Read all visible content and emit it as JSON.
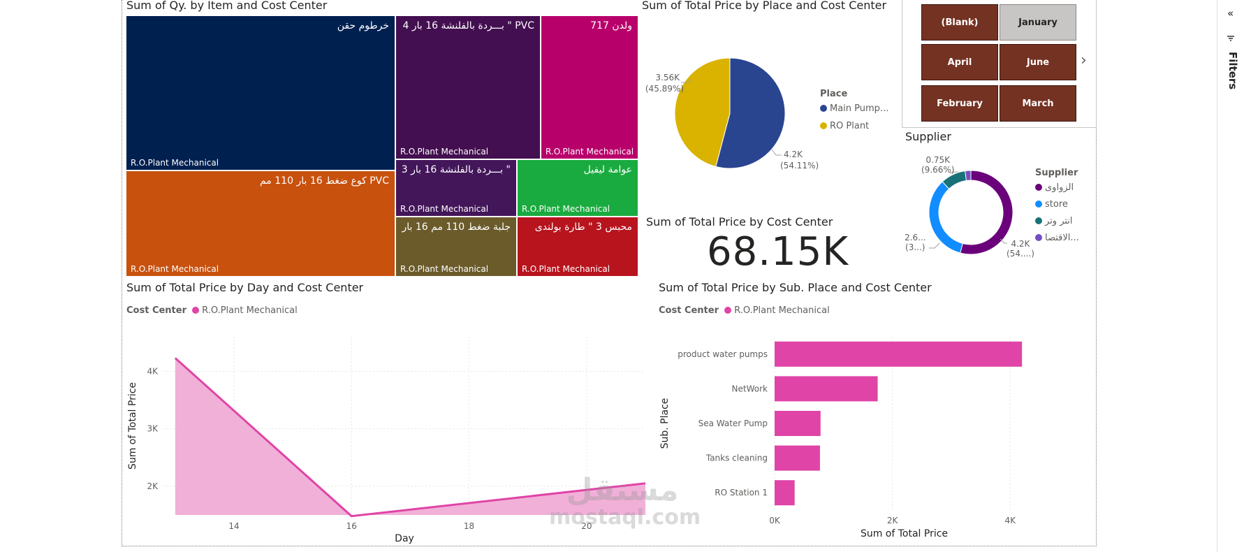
{
  "treemap": {
    "title": "Sum of Qy. by Item and Cost Center",
    "tiles": [
      {
        "name": "خرطوم حقن",
        "cc": "R.O.Plant Mechanical",
        "color": "#002050"
      },
      {
        "name": "PVC \" بـــردة بالفلنشة 16 بار 4",
        "cc": "R.O.Plant Mechanical",
        "color": "#430f50"
      },
      {
        "name": "ولدن 717",
        "cc": "R.O.Plant Mechanical",
        "color": "#b8006b"
      },
      {
        "name": "PVC كوع ضغط 16 بار 110 مم",
        "cc": "R.O.Plant Mechanical",
        "color": "#c8510e"
      },
      {
        "name": "\" بـــردة بالفلنشة 16 بار 3",
        "cc": "R.O.Plant Mechanical",
        "color": "#43165a"
      },
      {
        "name": "عوامة ليفيل",
        "cc": "R.O.Plant Mechanical",
        "color": "#1aab40"
      },
      {
        "name": "جلبة ضغط 110 مم 16 بار",
        "cc": "R.O.Plant Mechanical",
        "color": "#6b5b2b"
      },
      {
        "name": "محبس 3 \" طارة بولندى",
        "cc": "R.O.Plant Mechanical",
        "color": "#b7141e"
      }
    ]
  },
  "pie": {
    "title": "Sum of Total Price by Place and Cost Center",
    "legend_title": "Place",
    "slices": [
      {
        "name": "Main Pump...",
        "value": 4.2,
        "color": "#2a4590",
        "label_value": "4.2K",
        "label_pct": "(54.11%)"
      },
      {
        "name": "RO Plant",
        "value": 3.56,
        "color": "#d9b300",
        "label_value": "3.56K",
        "label_pct": "(45.89%)"
      }
    ]
  },
  "slicer": {
    "buttons": [
      {
        "label": "(Blank)",
        "selected": false
      },
      {
        "label": "January",
        "selected": true
      },
      {
        "label": "April",
        "selected": false
      },
      {
        "label": "June",
        "selected": false
      },
      {
        "label": "February",
        "selected": false
      },
      {
        "label": "March",
        "selected": false
      }
    ],
    "next_arrow": "›"
  },
  "donut": {
    "title": "Supplier",
    "legend_title": "Supplier",
    "slices": [
      {
        "name": "الزواوى",
        "value": 54.1,
        "color": "#6b007b"
      },
      {
        "name": "store",
        "value": 34.0,
        "color": "#118dff"
      },
      {
        "name": "انتر وتر",
        "value": 9.66,
        "color": "#197278"
      },
      {
        "name": "الاقتصا...",
        "value": 2.24,
        "color": "#744ec2"
      }
    ],
    "labels": {
      "top_value": "0.75K",
      "top_pct": "(9.66%)",
      "left_value": "2.6...",
      "left_pct": "(3...)",
      "right_value": "4.2K",
      "right_pct": "(54....)"
    }
  },
  "card": {
    "title": "Sum of Total Price by Cost Center",
    "value": "68.15K"
  },
  "area_chart": {
    "title": "Sum of Total Price by Day and Cost Center",
    "legend_prefix": "Cost Center",
    "legend_item": "R.O.Plant Mechanical",
    "xlabel": "Day",
    "ylabel": "Sum of Total Price",
    "x_ticks": [
      "14",
      "16",
      "18",
      "20"
    ],
    "y_ticks": [
      "4K",
      "3K",
      "2K"
    ]
  },
  "bar_chart": {
    "title": "Sum of Total Price by Sub. Place and Cost Center",
    "legend_prefix": "Cost Center",
    "legend_item": "R.O.Plant Mechanical",
    "xlabel": "Sum of Total Price",
    "ylabel": "Sub. Place",
    "x_ticks": [
      "0K",
      "2K",
      "4K"
    ]
  },
  "chart_data": [
    {
      "type": "area",
      "title": "Sum of Total Price by Day and Cost Center",
      "xlabel": "Day",
      "ylabel": "Sum of Total Price",
      "xlim": [
        12.8,
        21
      ],
      "ylim": [
        1500,
        4600
      ],
      "series": [
        {
          "name": "R.O.Plant Mechanical",
          "color": "#e044a7",
          "x": [
            13,
            16,
            21
          ],
          "y": [
            4230,
            1480,
            2050
          ]
        }
      ]
    },
    {
      "type": "bar",
      "title": "Sum of Total Price by Sub. Place and Cost Center",
      "xlabel": "Sum of Total Price",
      "ylabel": "Sub. Place",
      "xlim": [
        0,
        4400
      ],
      "categories": [
        "product water pumps",
        "NetWork",
        "Sea Water Pump",
        "Tanks cleaning",
        "RO Station 1"
      ],
      "series": [
        {
          "name": "R.O.Plant Mechanical",
          "color": "#e044a7",
          "values": [
            4200,
            1750,
            780,
            770,
            340
          ]
        }
      ]
    },
    {
      "type": "pie",
      "title": "Sum of Total Price by Place and Cost Center",
      "categories": [
        "Main Pump...",
        "RO Plant"
      ],
      "values": [
        4200,
        3560
      ]
    }
  ],
  "watermark": {
    "arabic": "مستقل",
    "latin": "mostaql.com"
  },
  "filters_pane": {
    "label": "Filters",
    "collapse_icon": "«"
  }
}
